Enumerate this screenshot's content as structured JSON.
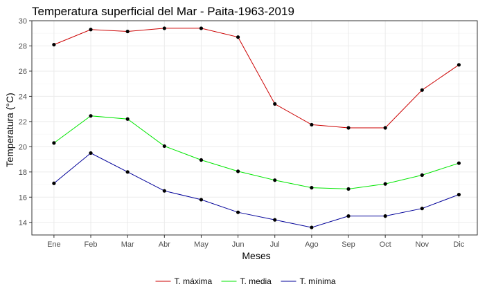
{
  "chart_data": {
    "type": "line",
    "title": "Temperatura superficial del Mar - Paita-1963-2019",
    "xlabel": "Meses",
    "ylabel": "Temperatura (°C)",
    "categories": [
      "Ene",
      "Feb",
      "Mar",
      "Abr",
      "May",
      "Jun",
      "Jul",
      "Ago",
      "Sep",
      "Oct",
      "Nov",
      "Dic"
    ],
    "ylim": [
      13,
      30
    ],
    "yticks": [
      14,
      16,
      18,
      20,
      22,
      24,
      26,
      28,
      30
    ],
    "grid": true,
    "legend_position": "bottom",
    "series": [
      {
        "name": "T. máxima",
        "color": "#cc0000",
        "values": [
          28.1,
          29.3,
          29.15,
          29.4,
          29.4,
          28.7,
          23.4,
          21.75,
          21.5,
          21.5,
          24.5,
          26.5
        ]
      },
      {
        "name": "T. media",
        "color": "#00e600",
        "values": [
          20.3,
          22.45,
          22.2,
          20.05,
          18.95,
          18.05,
          17.35,
          16.75,
          16.65,
          17.05,
          17.75,
          18.7
        ]
      },
      {
        "name": "T. mínima",
        "color": "#000099",
        "values": [
          17.1,
          19.5,
          18.0,
          16.5,
          15.8,
          14.8,
          14.2,
          13.6,
          14.5,
          14.5,
          15.1,
          16.2
        ]
      }
    ]
  }
}
